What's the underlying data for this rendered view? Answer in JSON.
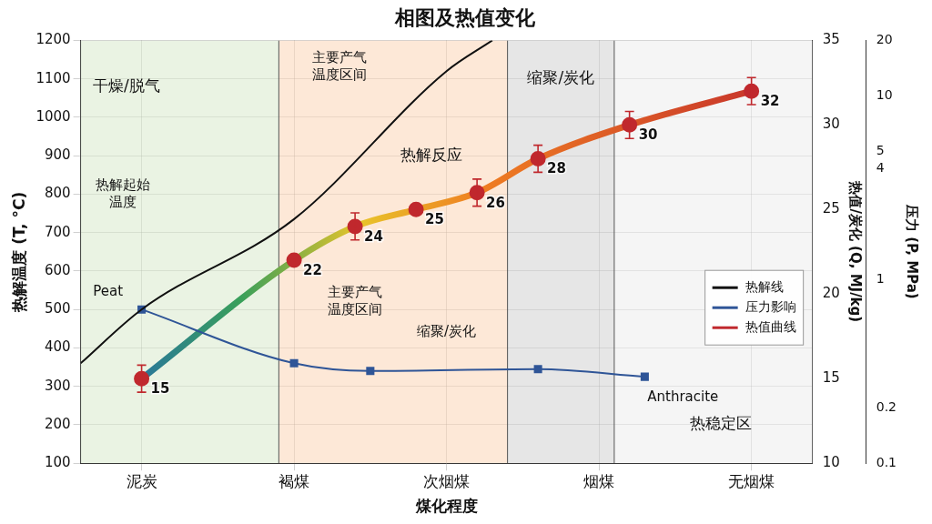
{
  "chart_data": {
    "type": "line",
    "title": "相图及热值变化",
    "x_label": "煤化程度",
    "y_label": "热解温度 (T, °C)",
    "y2_label": "热值/炭化 (Q, MJ/kg)",
    "xlim": [
      -0.4,
      4.4
    ],
    "xticks": [
      {
        "value": 0,
        "label": "泥炭"
      },
      {
        "value": 1,
        "label": "褐煤"
      },
      {
        "value": 2,
        "label": "次烟煤"
      },
      {
        "value": 3,
        "label": "烟煤"
      },
      {
        "value": 4,
        "label": "无烟煤"
      }
    ],
    "ylim": [
      100,
      1200
    ],
    "yticks": [
      100,
      200,
      300,
      400,
      500,
      600,
      700,
      800,
      900,
      1000,
      1100,
      1200
    ],
    "y2lim": [
      10,
      35
    ],
    "y2ticks": [
      10,
      15,
      20,
      25,
      30,
      35
    ],
    "pressure_axis": {
      "label": "压力 (P, MPa)",
      "lim": [
        0.1,
        20
      ],
      "ticks": [
        0.1,
        0.2,
        1,
        4,
        5,
        10,
        20
      ],
      "log": true
    },
    "grid": true,
    "legend": "lower right",
    "series": [
      {
        "name": "热解线",
        "color": "#111111",
        "marker": "none",
        "line_style": "solid",
        "x": [
          -0.4,
          0,
          1,
          2,
          2.3
        ],
        "values": [
          360,
          500,
          735,
          1120,
          1200
        ]
      },
      {
        "name": "压力影响",
        "color": "#2f5597",
        "marker": "square",
        "line_style": "solid",
        "x": [
          0,
          1,
          1.5,
          2.6,
          3.3
        ],
        "values": [
          500,
          360,
          340,
          345,
          325
        ]
      },
      {
        "name": "热值曲线",
        "color": "#c0282d",
        "marker": "circle",
        "line_style": "solid",
        "axis": "y2",
        "data_labels": true,
        "x": [
          0,
          1,
          1.4,
          1.8,
          2.2,
          2.6,
          3.2,
          4
        ],
        "values": [
          15,
          22,
          24,
          25,
          26,
          28,
          30,
          32
        ],
        "errors": [
          0.8,
          null,
          0.8,
          null,
          0.8,
          0.8,
          0.8,
          0.8
        ]
      }
    ],
    "regions": [
      {
        "label": "干燥/脱气",
        "x": [
          -0.4,
          0.9
        ],
        "color": "#dcebd0"
      },
      {
        "label": "热解反应",
        "x": [
          0.9,
          2.4
        ],
        "color": "#fcd9bd"
      },
      {
        "label": "缩聚/炭化",
        "x": [
          2.4,
          3.1
        ],
        "color": "#d6d6d6"
      },
      {
        "label": "热稳定区",
        "x": [
          3.1,
          4.4
        ],
        "color": "#eeeeee"
      }
    ],
    "annotations": [
      "热解起始温度",
      "主要产气温度区间",
      "主要产气温度区间",
      "缩聚/炭化",
      "Peat",
      "Anthracite"
    ]
  }
}
